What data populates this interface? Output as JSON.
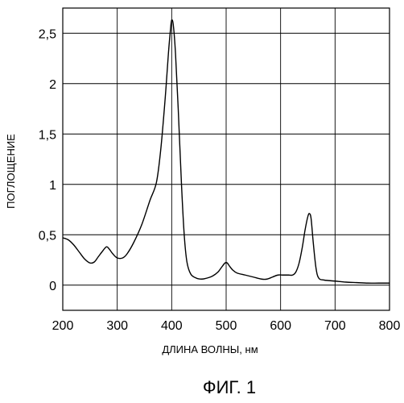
{
  "chart_data": {
    "type": "line",
    "xlabel": "ДЛИНА ВОЛНЫ, нм",
    "ylabel": "ПОГЛОЩЕНИЕ",
    "caption": "ФИГ. 1",
    "xlim": [
      200,
      800
    ],
    "ylim": [
      -0.25,
      2.75
    ],
    "grid": true,
    "x_ticks": [
      200,
      300,
      400,
      500,
      600,
      700,
      800
    ],
    "x_tick_labels": [
      "200",
      "300",
      "400",
      "500",
      "600",
      "700",
      "800"
    ],
    "y_ticks": [
      0,
      0.5,
      1,
      1.5,
      2,
      2.5
    ],
    "y_tick_labels": [
      "0",
      "0,5",
      "1",
      "1,5",
      "2",
      "2,5"
    ],
    "series": [
      {
        "x": [
          200,
          210,
          220,
          230,
          240,
          250,
          258,
          265,
          272,
          280,
          285,
          292,
          300,
          310,
          318,
          330,
          345,
          360,
          372,
          380,
          388,
          394,
          398,
          400,
          403,
          407,
          412,
          418,
          423,
          428,
          435,
          445,
          455,
          465,
          475,
          485,
          492,
          498,
          502,
          506,
          512,
          520,
          535,
          550,
          565,
          575,
          585,
          595,
          605,
          615,
          622,
          628,
          634,
          640,
          645,
          650,
          653,
          656,
          660,
          665,
          670,
          680,
          700,
          720,
          740,
          760,
          780,
          800
        ],
        "y": [
          0.47,
          0.45,
          0.4,
          0.33,
          0.26,
          0.22,
          0.23,
          0.28,
          0.33,
          0.38,
          0.36,
          0.31,
          0.27,
          0.27,
          0.31,
          0.42,
          0.6,
          0.84,
          1.02,
          1.35,
          1.85,
          2.3,
          2.55,
          2.63,
          2.58,
          2.3,
          1.75,
          1.0,
          0.5,
          0.23,
          0.11,
          0.07,
          0.06,
          0.07,
          0.09,
          0.13,
          0.18,
          0.22,
          0.22,
          0.19,
          0.15,
          0.12,
          0.1,
          0.08,
          0.06,
          0.06,
          0.08,
          0.1,
          0.1,
          0.1,
          0.1,
          0.13,
          0.22,
          0.38,
          0.55,
          0.68,
          0.71,
          0.66,
          0.42,
          0.17,
          0.07,
          0.05,
          0.04,
          0.03,
          0.025,
          0.02,
          0.02,
          0.02
        ]
      }
    ]
  }
}
